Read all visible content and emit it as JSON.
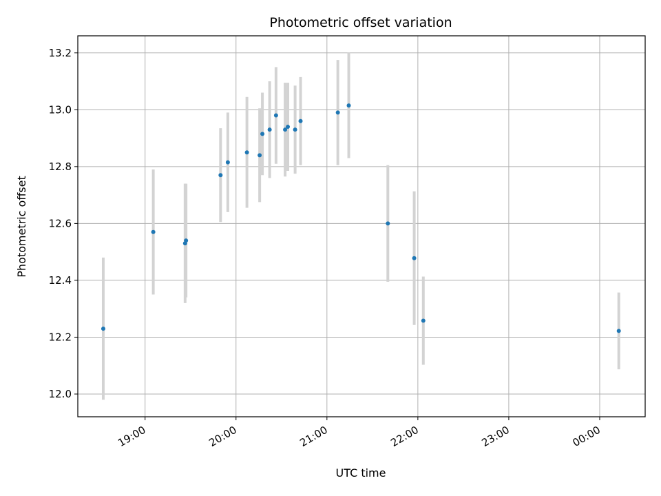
{
  "chart_data": {
    "type": "scatter",
    "title": "Photometric offset variation",
    "xlabel": "UTC time",
    "ylabel": "Photometric offset",
    "x_unit": "hours (UTC, continuing past midnight)",
    "xlim": [
      18.26,
      24.5
    ],
    "ylim": [
      11.92,
      13.26
    ],
    "xticks": [
      {
        "value": 19,
        "label": "19:00"
      },
      {
        "value": 20,
        "label": "20:00"
      },
      {
        "value": 21,
        "label": "21:00"
      },
      {
        "value": 22,
        "label": "22:00"
      },
      {
        "value": 23,
        "label": "23:00"
      },
      {
        "value": 24,
        "label": "00:00"
      }
    ],
    "yticks": [
      {
        "value": 12.0,
        "label": "12.0"
      },
      {
        "value": 12.2,
        "label": "12.2"
      },
      {
        "value": 12.4,
        "label": "12.4"
      },
      {
        "value": 12.6,
        "label": "12.6"
      },
      {
        "value": 12.8,
        "label": "12.8"
      },
      {
        "value": 13.0,
        "label": "13.0"
      },
      {
        "value": 13.2,
        "label": "13.2"
      }
    ],
    "grid": true,
    "marker_color": "#1f77b4",
    "errorbar_color": "#d3d3d3",
    "points": [
      {
        "x": 18.54,
        "y": 12.23,
        "err": 0.25
      },
      {
        "x": 19.09,
        "y": 12.57,
        "err": 0.22
      },
      {
        "x": 19.44,
        "y": 12.53,
        "err": 0.21
      },
      {
        "x": 19.45,
        "y": 12.54,
        "err": 0.2
      },
      {
        "x": 19.83,
        "y": 12.77,
        "err": 0.165
      },
      {
        "x": 19.91,
        "y": 12.815,
        "err": 0.175
      },
      {
        "x": 20.12,
        "y": 12.85,
        "err": 0.195
      },
      {
        "x": 20.26,
        "y": 12.84,
        "err": 0.165
      },
      {
        "x": 20.29,
        "y": 12.915,
        "err": 0.145
      },
      {
        "x": 20.37,
        "y": 12.93,
        "err": 0.17
      },
      {
        "x": 20.44,
        "y": 12.98,
        "err": 0.17
      },
      {
        "x": 20.54,
        "y": 12.93,
        "err": 0.165
      },
      {
        "x": 20.57,
        "y": 12.94,
        "err": 0.155
      },
      {
        "x": 20.65,
        "y": 12.93,
        "err": 0.155
      },
      {
        "x": 20.71,
        "y": 12.96,
        "err": 0.155
      },
      {
        "x": 21.12,
        "y": 12.99,
        "err": 0.185
      },
      {
        "x": 21.24,
        "y": 13.015,
        "err": 0.185
      },
      {
        "x": 21.67,
        "y": 12.6,
        "err": 0.205
      },
      {
        "x": 21.96,
        "y": 12.478,
        "err": 0.235
      },
      {
        "x": 22.06,
        "y": 12.258,
        "err": 0.155
      },
      {
        "x": 24.21,
        "y": 12.222,
        "err": 0.135
      }
    ]
  }
}
